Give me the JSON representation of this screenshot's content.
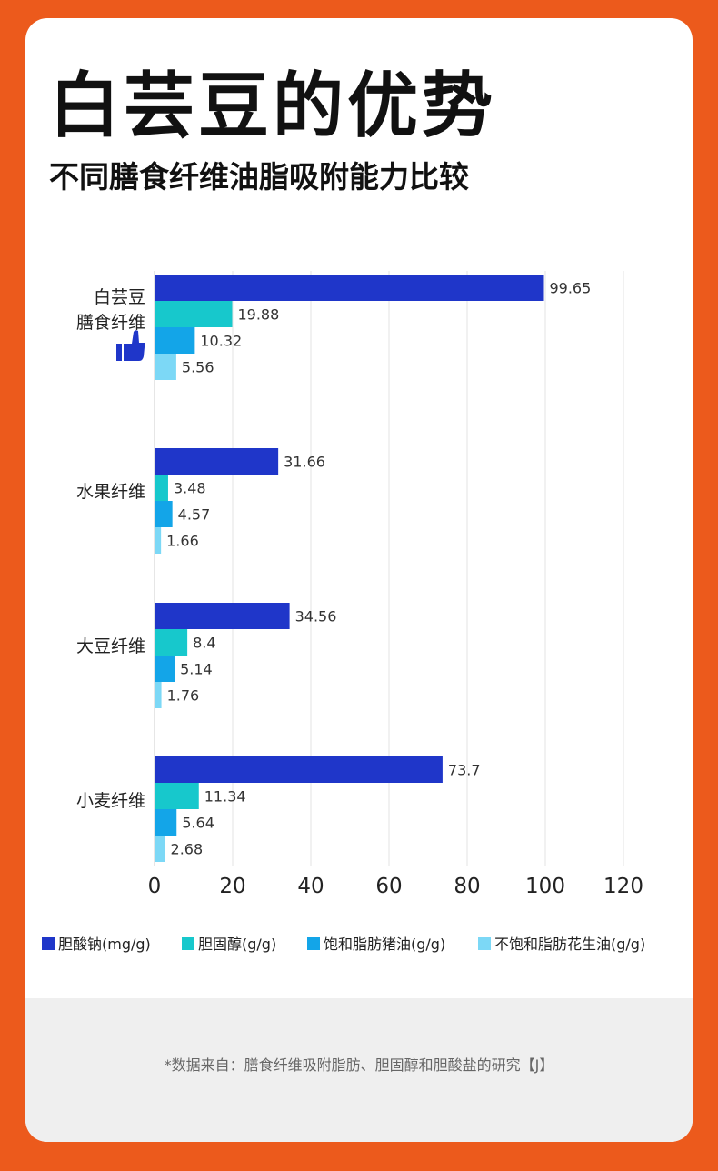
{
  "title": "白芸豆的优势",
  "subtitle": "不同膳食纤维油脂吸附能力比较",
  "source_note": "*数据来自：膳食纤维吸附脂肪、胆固醇和胆酸盐的研究【J】",
  "chart_data": {
    "type": "bar",
    "orientation": "horizontal",
    "categories": [
      [
        "白芸豆",
        "膳食纤维"
      ],
      [
        "水果纤维"
      ],
      [
        "大豆纤维"
      ],
      [
        "小麦纤维"
      ]
    ],
    "highlight_icon": "thumbs-up-icon",
    "series": [
      {
        "name": "胆酸钠(mg/g)",
        "color": "#1f36c9",
        "values": [
          99.65,
          31.66,
          34.56,
          73.7
        ],
        "labels": [
          "99.65",
          "31.66",
          "34.56",
          "73.7"
        ]
      },
      {
        "name": "胆固醇(g/g)",
        "color": "#17c8cc",
        "values": [
          19.88,
          3.48,
          8.4,
          11.34
        ],
        "labels": [
          "19.88",
          "3.48",
          "8.4",
          "11.34"
        ]
      },
      {
        "name": "饱和脂肪猪油(g/g)",
        "color": "#13a5e8",
        "values": [
          10.32,
          4.57,
          5.14,
          5.64
        ],
        "labels": [
          "10.32",
          "4.57",
          "5.14",
          "5.64"
        ]
      },
      {
        "name": "不饱和脂肪花生油(g/g)",
        "color": "#7cd8f6",
        "values": [
          5.56,
          1.66,
          1.76,
          2.68
        ],
        "labels": [
          "5.56",
          "1.66",
          "1.76",
          "2.68"
        ]
      }
    ],
    "xlim": [
      0,
      120
    ],
    "xticks": [
      "0",
      "20",
      "40",
      "60",
      "80",
      "100",
      "120"
    ],
    "grid": true,
    "legend": "bottom"
  }
}
